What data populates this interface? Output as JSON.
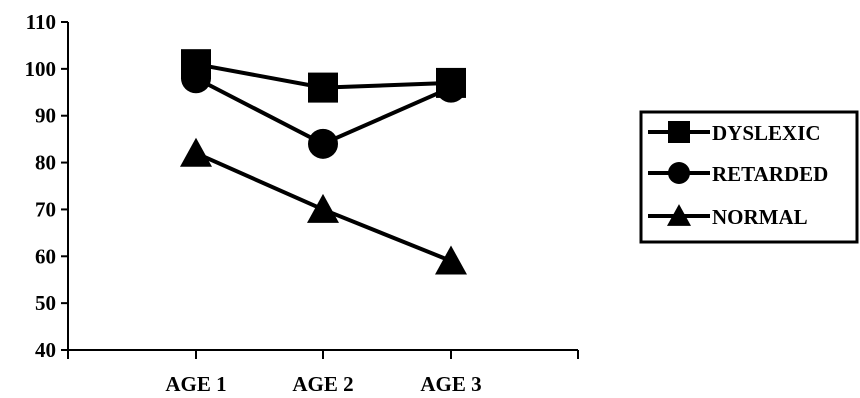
{
  "chart_data": {
    "type": "line",
    "title": "",
    "xlabel": "",
    "ylabel": "",
    "categories": [
      "AGE 1",
      "AGE 2",
      "AGE 3"
    ],
    "ylim": [
      40,
      110
    ],
    "yticks": [
      "40",
      "50",
      "60",
      "70",
      "80",
      "90",
      "100",
      "110"
    ],
    "grid": false,
    "legend_position": "right",
    "series": [
      {
        "name": "DYSLEXIC",
        "marker": "square",
        "values": [
          101,
          96,
          97
        ]
      },
      {
        "name": "RETARDED",
        "marker": "circle",
        "values": [
          98,
          84,
          96
        ]
      },
      {
        "name": "NORMAL",
        "marker": "triangle",
        "values": [
          82,
          70,
          59
        ]
      }
    ],
    "colors": {
      "line": "#000000",
      "background": "#ffffff"
    }
  }
}
